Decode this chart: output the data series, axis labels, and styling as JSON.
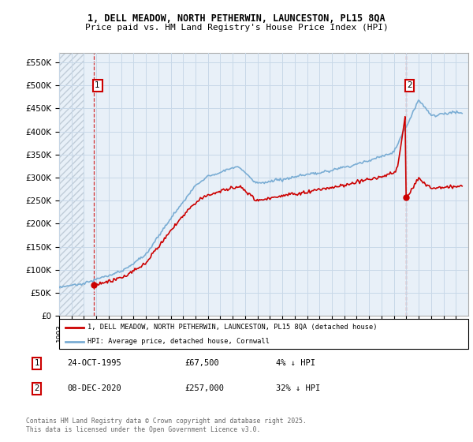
{
  "title_line1": "1, DELL MEADOW, NORTH PETHERWIN, LAUNCESTON, PL15 8QA",
  "title_line2": "Price paid vs. HM Land Registry's House Price Index (HPI)",
  "ylim": [
    0,
    570000
  ],
  "yticks": [
    0,
    50000,
    100000,
    150000,
    200000,
    250000,
    300000,
    350000,
    400000,
    450000,
    500000,
    550000
  ],
  "ytick_labels": [
    "£0",
    "£50K",
    "£100K",
    "£150K",
    "£200K",
    "£250K",
    "£300K",
    "£350K",
    "£400K",
    "£450K",
    "£500K",
    "£550K"
  ],
  "purchase1_date": "24-OCT-1995",
  "purchase1_price": 67500,
  "purchase1_label": "4% ↓ HPI",
  "purchase2_date": "08-DEC-2020",
  "purchase2_price": 257000,
  "purchase2_label": "32% ↓ HPI",
  "legend_line1": "1, DELL MEADOW, NORTH PETHERWIN, LAUNCESTON, PL15 8QA (detached house)",
  "legend_line2": "HPI: Average price, detached house, Cornwall",
  "footer": "Contains HM Land Registry data © Crown copyright and database right 2025.\nThis data is licensed under the Open Government Licence v3.0.",
  "line_color_red": "#cc0000",
  "line_color_blue": "#7aadd4",
  "grid_color": "#c8d8e8",
  "annotation_box_color": "#cc0000",
  "bg_color": "#e8f0f8",
  "hatch_color": "#c0ccd8"
}
